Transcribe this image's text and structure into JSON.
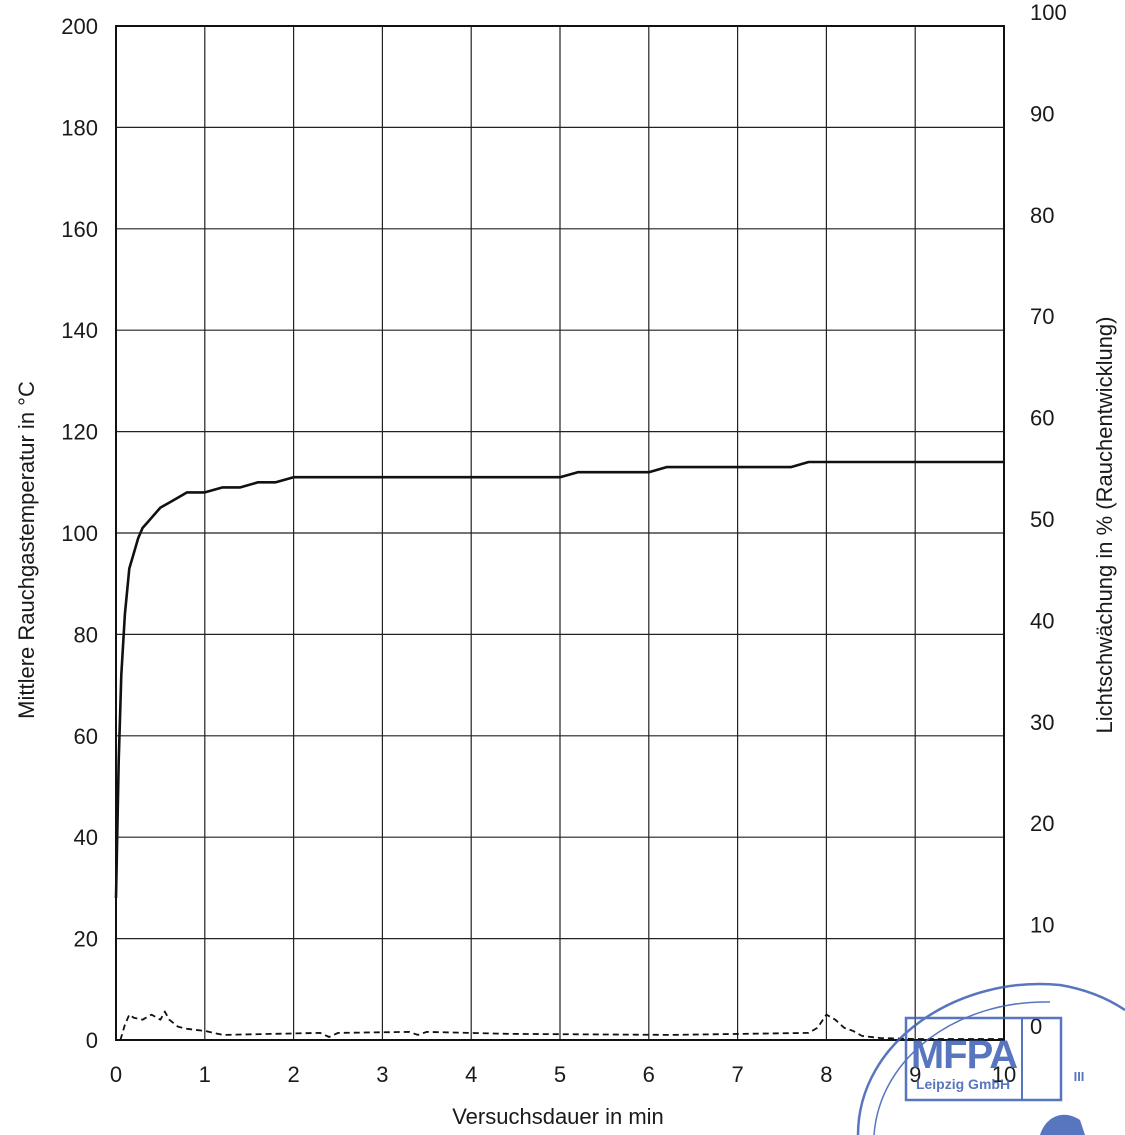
{
  "chart_data": {
    "type": "line",
    "xlabel": "Versuchsdauer in min",
    "ylabel_left": "Mittlere Rauchgastemperatur in °C",
    "ylabel_right": "Lichtschwächung in % (Rauchentwicklung)",
    "xlim": [
      0,
      10
    ],
    "ylim_left": [
      0,
      200
    ],
    "ylim_right": [
      0,
      100
    ],
    "x_ticks": [
      "0",
      "1",
      "2",
      "3",
      "4",
      "5",
      "6",
      "7",
      "8",
      "9",
      "10"
    ],
    "y_ticks_left": [
      "0",
      "20",
      "40",
      "60",
      "80",
      "100",
      "120",
      "140",
      "160",
      "180",
      "200"
    ],
    "y_ticks_right": [
      "0",
      "10",
      "20",
      "30",
      "40",
      "50",
      "60",
      "70",
      "80",
      "90",
      "100"
    ],
    "grid": true,
    "series": [
      {
        "axis": "left",
        "style": "solid",
        "x": [
          0,
          0.03,
          0.06,
          0.1,
          0.15,
          0.2,
          0.25,
          0.3,
          0.35,
          0.4,
          0.5,
          0.6,
          0.7,
          0.8,
          0.9,
          1.0,
          1.2,
          1.4,
          1.6,
          1.8,
          2.0,
          2.2,
          2.4,
          2.6,
          2.8,
          3.0,
          3.2,
          3.4,
          3.6,
          3.8,
          4.0,
          4.2,
          4.4,
          4.6,
          4.8,
          5.0,
          5.2,
          5.4,
          5.6,
          5.8,
          6.0,
          6.2,
          6.4,
          6.6,
          6.8,
          7.0,
          7.2,
          7.4,
          7.6,
          7.8,
          8.0,
          8.2,
          8.4,
          8.6,
          8.8,
          9.0,
          9.2,
          9.4,
          9.6,
          9.8,
          10.0
        ],
        "y": [
          28,
          55,
          72,
          84,
          93,
          96,
          99,
          101,
          102,
          103,
          105,
          106,
          107,
          108,
          108,
          108,
          109,
          109,
          110,
          110,
          111,
          111,
          111,
          111,
          111,
          111,
          111,
          111,
          111,
          111,
          111,
          111,
          111,
          111,
          111,
          111,
          112,
          112,
          112,
          112,
          112,
          113,
          113,
          113,
          113,
          113,
          113,
          113,
          113,
          114,
          114,
          114,
          114,
          114,
          114,
          114,
          114,
          114,
          114,
          114,
          114
        ]
      },
      {
        "axis": "right",
        "style": "dashed",
        "x": [
          0.05,
          0.1,
          0.15,
          0.2,
          0.3,
          0.4,
          0.5,
          0.55,
          0.6,
          0.7,
          0.8,
          0.9,
          1.0,
          1.2,
          2.3,
          2.4,
          2.5,
          3.3,
          3.4,
          3.5,
          4.45,
          6.25,
          7.8,
          7.9,
          8.0,
          8.1,
          8.2,
          8.3,
          8.4,
          8.6,
          9.0,
          9.5,
          10.0
        ],
        "y": [
          0,
          1.5,
          2.5,
          2.2,
          2.0,
          2.5,
          2.0,
          2.8,
          2.0,
          1.3,
          1.1,
          1.0,
          0.9,
          0.5,
          0.7,
          0.3,
          0.7,
          0.8,
          0.5,
          0.8,
          0.6,
          0.5,
          0.7,
          1.2,
          2.5,
          2.0,
          1.2,
          0.9,
          0.4,
          0.2,
          0.1,
          0.1,
          0.1
        ]
      }
    ],
    "stamp": {
      "logo_text": "MFPA",
      "sub_text": "Leipzig GmbH",
      "side_text": "III"
    }
  }
}
